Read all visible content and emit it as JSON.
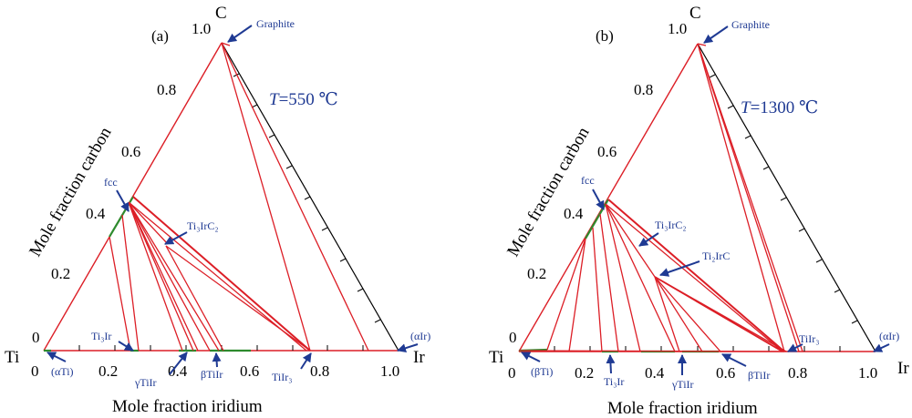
{
  "colors": {
    "tie_line": "#dc1e26",
    "single_phase": "#2e8b2e",
    "annotation": "#1f3a93",
    "frame": "#000000"
  },
  "panels": [
    {
      "label": "(a)",
      "temperature_symbol": "T",
      "temperature_rest": "=550 ℃",
      "corners": {
        "top": "C",
        "left": "Ti",
        "right": "Ir"
      },
      "left_ticks": [
        "0",
        "0.2",
        "0.4",
        "0.6",
        "0.8",
        "1.0"
      ],
      "bottom_ticks": [
        "0",
        "0.2",
        "0.4",
        "0.6",
        "0.8",
        "1.0"
      ],
      "left_axis_label": "Mole fraction carbon",
      "bottom_axis_label": "Mole fraction iridium",
      "phases": {
        "graphite": "Graphite",
        "fcc": "fcc",
        "ti3irc2": "Ti₃IrC₂",
        "alpha_ti": "(αTi)",
        "alpha_ir": "(αIr)",
        "ti3ir": "Ti₃Ir",
        "gamma_tiir": "γTiIr",
        "beta_tiir": "βTiIr",
        "tiir3": "TiIr₃"
      }
    },
    {
      "label": "(b)",
      "temperature_symbol": "T",
      "temperature_rest": "=1300 ℃",
      "corners": {
        "top": "C",
        "left": "Ti",
        "right": "Ir"
      },
      "left_ticks": [
        "0",
        "0.2",
        "0.4",
        "0.6",
        "0.8",
        "1.0"
      ],
      "bottom_ticks": [
        "0",
        "0.2",
        "0.4",
        "0.6",
        "0.8",
        "1.0"
      ],
      "left_axis_label": "Mole fraction carbon",
      "bottom_axis_label": "Mole fraction iridium",
      "phases": {
        "graphite": "Graphite",
        "fcc": "fcc",
        "ti3irc2": "Ti₃IrC₂",
        "ti2irc": "Ti₂IrC",
        "beta_ti": "(βTi)",
        "alpha_ir": "(αIr)",
        "ti3ir": "Ti₃Ir",
        "gamma_tiir": "γTiIr",
        "beta_tiir": "βTiIr",
        "tiir3": "TiIr₃"
      }
    }
  ]
}
